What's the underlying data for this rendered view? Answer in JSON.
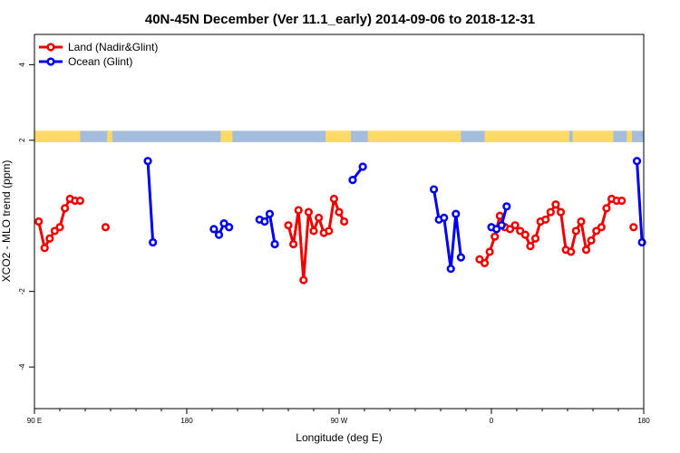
{
  "chart_data": {
    "type": "line",
    "title": "40N-45N December (Ver 11.1_early)   2014-09-06 to 2018-12-31",
    "xlabel": "Longitude (deg E)",
    "ylabel": "XCO2 - MLO trend (ppm)",
    "xlim": [
      90,
      450
    ],
    "ylim": [
      -5.1,
      4.8
    ],
    "xticks": [
      {
        "value": 90,
        "label": "90 E"
      },
      {
        "value": 180,
        "label": "180"
      },
      {
        "value": 270,
        "label": "90 W"
      },
      {
        "value": 360,
        "label": "0"
      },
      {
        "value": 450,
        "label": "180"
      }
    ],
    "minor_xticks": [
      105,
      120,
      135,
      150,
      165,
      195,
      210,
      225,
      240,
      255,
      285,
      300,
      315,
      330,
      345,
      375,
      390,
      405,
      420,
      435
    ],
    "yticks": [
      -4,
      -2,
      2,
      4
    ],
    "legend": {
      "position": "top-left",
      "entries": [
        {
          "label": "Land (Nadir&Glint)",
          "color": "#ee0000"
        },
        {
          "label": "Ocean (Glint)",
          "color": "#0000ee"
        }
      ]
    },
    "land_ocean_strip": {
      "y_range": [
        1.95,
        2.25
      ],
      "land_color": "#ffd966",
      "ocean_color": "#a4bddc",
      "land_segments": [
        [
          90,
          117
        ],
        [
          133,
          136
        ],
        [
          200,
          207
        ],
        [
          262,
          277
        ],
        [
          287,
          342
        ],
        [
          356,
          406
        ],
        [
          408,
          432
        ],
        [
          440,
          443
        ]
      ]
    },
    "series": [
      {
        "name": "Land (Nadir&Glint)",
        "color": "#ee0000",
        "segments": [
          [
            [
              92.5,
              -0.15
            ],
            [
              96,
              -0.85
            ],
            [
              99,
              -0.6
            ],
            [
              102,
              -0.4
            ],
            [
              105,
              -0.3
            ],
            [
              108,
              0.2
            ],
            [
              111,
              0.45
            ],
            [
              114,
              0.4
            ],
            [
              117,
              0.4
            ]
          ],
          [
            [
              132,
              -0.3
            ]
          ],
          [
            [
              240,
              -0.25
            ],
            [
              243,
              -0.75
            ],
            [
              246,
              0.15
            ],
            [
              249,
              -1.7
            ],
            [
              252,
              0.1
            ],
            [
              255,
              -0.4
            ],
            [
              258,
              -0.05
            ],
            [
              261,
              -0.45
            ],
            [
              264,
              -0.4
            ],
            [
              267,
              0.45
            ],
            [
              270,
              0.1
            ],
            [
              273,
              -0.15
            ]
          ],
          [
            [
              353,
              -1.15
            ],
            [
              356,
              -1.25
            ],
            [
              359,
              -0.95
            ],
            [
              362,
              -0.55
            ],
            [
              365,
              0.0
            ],
            [
              368,
              -0.3
            ],
            [
              371,
              -0.35
            ],
            [
              374,
              -0.25
            ],
            [
              377,
              -0.4
            ],
            [
              380,
              -0.5
            ],
            [
              383,
              -0.8
            ],
            [
              386,
              -0.6
            ],
            [
              389,
              -0.15
            ],
            [
              392,
              -0.1
            ],
            [
              395,
              0.1
            ],
            [
              398,
              0.3
            ],
            [
              401,
              0.1
            ],
            [
              404,
              -0.9
            ],
            [
              407,
              -0.95
            ],
            [
              410,
              -0.4
            ],
            [
              413,
              -0.15
            ],
            [
              416,
              -0.9
            ],
            [
              419,
              -0.65
            ],
            [
              422,
              -0.4
            ],
            [
              425,
              -0.3
            ],
            [
              428,
              0.2
            ],
            [
              431,
              0.45
            ],
            [
              434,
              0.4
            ],
            [
              437,
              0.4
            ]
          ],
          [
            [
              444,
              -0.3
            ]
          ]
        ]
      },
      {
        "name": "Ocean (Glint)",
        "color": "#0000ee",
        "segments": [
          [
            [
              157,
              1.45
            ],
            [
              160,
              -0.7
            ]
          ],
          [
            [
              196,
              -0.35
            ],
            [
              199,
              -0.5
            ],
            [
              202,
              -0.2
            ],
            [
              205,
              -0.3
            ]
          ],
          [
            [
              223,
              -0.1
            ],
            [
              226,
              -0.15
            ],
            [
              229,
              0.05
            ],
            [
              232,
              -0.75
            ]
          ],
          [
            [
              278,
              0.95
            ],
            [
              284,
              1.3
            ]
          ],
          [
            [
              326,
              0.7
            ],
            [
              329,
              -0.1
            ],
            [
              332,
              -0.05
            ],
            [
              336,
              -1.4
            ],
            [
              339,
              0.05
            ],
            [
              342,
              -1.1
            ]
          ],
          [
            [
              360,
              -0.3
            ],
            [
              363,
              -0.35
            ],
            [
              366,
              -0.25
            ],
            [
              369,
              0.25
            ]
          ],
          [
            [
              446,
              1.45
            ],
            [
              449,
              -0.7
            ]
          ]
        ]
      }
    ]
  }
}
